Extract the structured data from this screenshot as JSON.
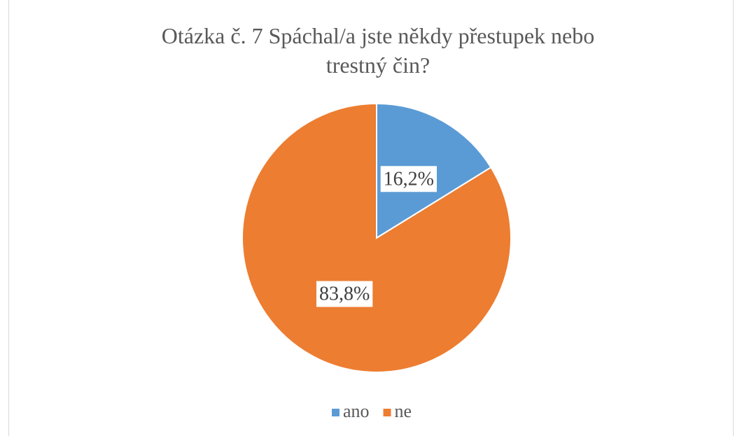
{
  "chart_data": {
    "type": "pie",
    "title": "Otázka č. 7 Spáchal/a jste někdy přestupek nebo trestný čin?",
    "categories": [
      "ano",
      "ne"
    ],
    "values": [
      16.2,
      83.8
    ],
    "value_labels": [
      "16,2%",
      "83,8%"
    ],
    "colors": [
      "#5b9bd5",
      "#ed7d31"
    ],
    "legend": "bottom"
  }
}
